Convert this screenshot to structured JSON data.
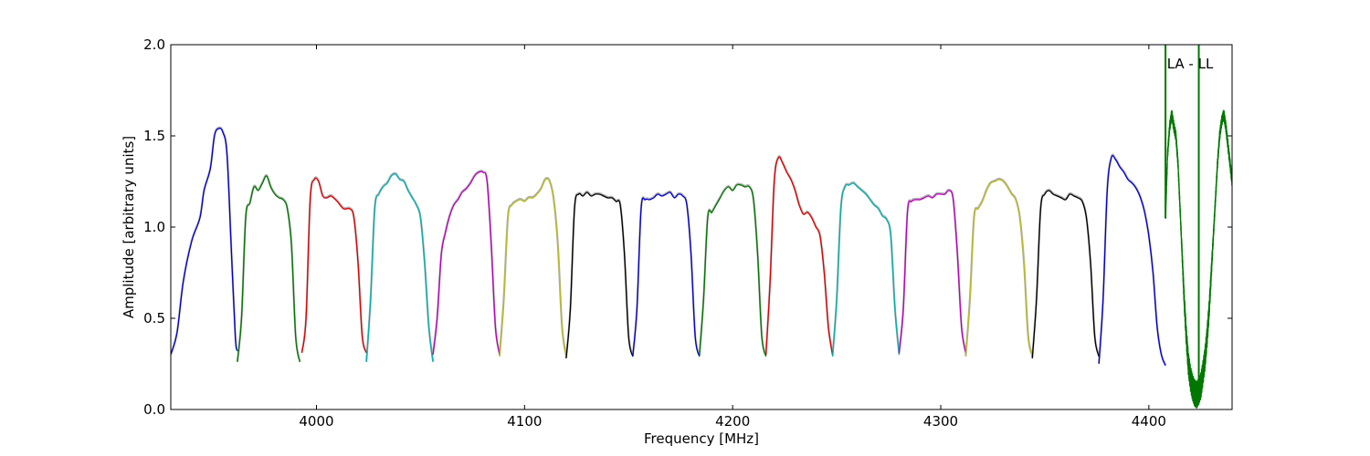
{
  "chart_data": {
    "type": "line",
    "title": "",
    "xlabel": "Frequency [MHz]",
    "ylabel": "Amplitude [arbitrary units]",
    "xlim": [
      3930,
      4440
    ],
    "ylim": [
      0.0,
      2.0
    ],
    "xticks": [
      4000,
      4100,
      4200,
      4300,
      4400
    ],
    "yticks": [
      0.0,
      0.5,
      1.0,
      1.5,
      2.0
    ],
    "xtick_labels": [
      "4000",
      "4100",
      "4200",
      "4300",
      "4400"
    ],
    "ytick_labels": [
      "0.0",
      "0.5",
      "1.0",
      "1.5",
      "2.0"
    ],
    "annotation": "LA - LL",
    "grid": false,
    "legend": "none",
    "reference_color": "#b0b0b0",
    "series": [
      {
        "color": "#0000cc",
        "x": [
          3930,
          3933,
          3936,
          3940,
          3944,
          3946,
          3949,
          3951,
          3953,
          3955,
          3957,
          3959,
          3961,
          3962
        ],
        "y": [
          0.3,
          0.42,
          0.7,
          0.92,
          1.05,
          1.2,
          1.32,
          1.5,
          1.54,
          1.52,
          1.4,
          0.9,
          0.4,
          0.32
        ]
      },
      {
        "color": "#007700",
        "x": [
          3962,
          3964,
          3966,
          3968,
          3970,
          3972,
          3974,
          3976,
          3978,
          3980,
          3982,
          3984,
          3986,
          3988,
          3990,
          3992
        ],
        "y": [
          0.26,
          0.5,
          1.05,
          1.13,
          1.22,
          1.2,
          1.24,
          1.28,
          1.22,
          1.18,
          1.16,
          1.15,
          1.1,
          0.9,
          0.4,
          0.26
        ]
      },
      {
        "color": "#dd0000",
        "x": [
          3993,
          3995,
          3997,
          3999,
          4001,
          4003,
          4005,
          4007,
          4010,
          4013,
          4016,
          4018,
          4020,
          4022,
          4024
        ],
        "y": [
          0.31,
          0.5,
          1.15,
          1.26,
          1.25,
          1.17,
          1.16,
          1.17,
          1.14,
          1.1,
          1.1,
          1.05,
          0.8,
          0.4,
          0.31
        ]
      },
      {
        "color": "#00b0b0",
        "x": [
          4024,
          4026,
          4028,
          4030,
          4032,
          4034,
          4036,
          4038,
          4040,
          4042,
          4044,
          4046,
          4048,
          4050,
          4052,
          4054,
          4056
        ],
        "y": [
          0.26,
          0.6,
          1.1,
          1.18,
          1.22,
          1.24,
          1.28,
          1.29,
          1.26,
          1.25,
          1.2,
          1.16,
          1.12,
          1.05,
          0.8,
          0.45,
          0.26
        ]
      },
      {
        "color": "#bb00bb",
        "x": [
          4056,
          4058,
          4060,
          4062,
          4064,
          4066,
          4068,
          4070,
          4072,
          4074,
          4076,
          4078,
          4080,
          4082,
          4084,
          4086,
          4088
        ],
        "y": [
          0.3,
          0.5,
          0.85,
          0.97,
          1.06,
          1.12,
          1.15,
          1.19,
          1.21,
          1.24,
          1.28,
          1.3,
          1.3,
          1.25,
          0.9,
          0.45,
          0.3
        ]
      },
      {
        "color": "#bbbb22",
        "x": [
          4088,
          4090,
          4092,
          4094,
          4096,
          4098,
          4100,
          4102,
          4104,
          4106,
          4108,
          4110,
          4112,
          4114,
          4116,
          4118,
          4120
        ],
        "y": [
          0.29,
          0.6,
          1.05,
          1.12,
          1.14,
          1.15,
          1.14,
          1.16,
          1.16,
          1.18,
          1.21,
          1.26,
          1.25,
          1.15,
          0.9,
          0.45,
          0.29
        ]
      },
      {
        "color": "#000000",
        "x": [
          4120,
          4122,
          4124,
          4126,
          4128,
          4130,
          4132,
          4134,
          4136,
          4138,
          4140,
          4142,
          4144,
          4146,
          4148,
          4150,
          4152
        ],
        "y": [
          0.28,
          0.55,
          1.1,
          1.18,
          1.17,
          1.19,
          1.17,
          1.18,
          1.18,
          1.17,
          1.16,
          1.16,
          1.14,
          1.12,
          0.85,
          0.4,
          0.29
        ]
      },
      {
        "color": "#0000cc",
        "x": [
          4152,
          4154,
          4156,
          4158,
          4160,
          4162,
          4164,
          4166,
          4168,
          4170,
          4172,
          4174,
          4176,
          4178,
          4180,
          4182,
          4184
        ],
        "y": [
          0.29,
          0.55,
          1.1,
          1.15,
          1.15,
          1.16,
          1.18,
          1.17,
          1.18,
          1.19,
          1.16,
          1.18,
          1.17,
          1.12,
          0.85,
          0.4,
          0.29
        ]
      },
      {
        "color": "#007700",
        "x": [
          4184,
          4186,
          4188,
          4190,
          4192,
          4194,
          4196,
          4198,
          4200,
          4202,
          4204,
          4206,
          4208,
          4210,
          4212,
          4214,
          4216
        ],
        "y": [
          0.29,
          0.6,
          1.05,
          1.08,
          1.12,
          1.16,
          1.2,
          1.22,
          1.2,
          1.23,
          1.23,
          1.22,
          1.22,
          1.15,
          0.85,
          0.4,
          0.29
        ]
      },
      {
        "color": "#dd0000",
        "x": [
          4216,
          4218,
          4220,
          4222,
          4224,
          4226,
          4228,
          4230,
          4232,
          4234,
          4236,
          4238,
          4240,
          4242,
          4244,
          4246,
          4248
        ],
        "y": [
          0.3,
          0.7,
          1.25,
          1.38,
          1.35,
          1.3,
          1.26,
          1.2,
          1.12,
          1.07,
          1.08,
          1.05,
          1.0,
          0.95,
          0.75,
          0.45,
          0.3
        ]
      },
      {
        "color": "#00b0b0",
        "x": [
          4248,
          4250,
          4252,
          4254,
          4256,
          4258,
          4260,
          4262,
          4264,
          4266,
          4268,
          4270,
          4272,
          4274,
          4276,
          4278,
          4280
        ],
        "y": [
          0.29,
          0.6,
          1.1,
          1.22,
          1.23,
          1.24,
          1.22,
          1.2,
          1.18,
          1.15,
          1.12,
          1.1,
          1.06,
          1.04,
          0.95,
          0.55,
          0.3
        ]
      },
      {
        "color": "#bb00bb",
        "x": [
          4280,
          4282,
          4284,
          4286,
          4288,
          4290,
          4292,
          4294,
          4296,
          4298,
          4300,
          4302,
          4304,
          4306,
          4308,
          4310,
          4312
        ],
        "y": [
          0.31,
          0.55,
          1.08,
          1.14,
          1.15,
          1.15,
          1.16,
          1.17,
          1.16,
          1.18,
          1.18,
          1.18,
          1.2,
          1.15,
          0.85,
          0.45,
          0.31
        ]
      },
      {
        "color": "#bbbb22",
        "x": [
          4312,
          4314,
          4316,
          4318,
          4320,
          4322,
          4324,
          4326,
          4328,
          4330,
          4332,
          4334,
          4336,
          4338,
          4340,
          4342,
          4344
        ],
        "y": [
          0.29,
          0.6,
          1.05,
          1.1,
          1.14,
          1.2,
          1.24,
          1.25,
          1.26,
          1.25,
          1.22,
          1.18,
          1.15,
          1.05,
          0.8,
          0.4,
          0.29
        ]
      },
      {
        "color": "#000000",
        "x": [
          4344,
          4346,
          4348,
          4350,
          4352,
          4354,
          4356,
          4358,
          4360,
          4362,
          4364,
          4366,
          4368,
          4370,
          4372,
          4374,
          4376
        ],
        "y": [
          0.28,
          0.6,
          1.1,
          1.18,
          1.2,
          1.18,
          1.17,
          1.16,
          1.15,
          1.18,
          1.17,
          1.16,
          1.14,
          1.05,
          0.8,
          0.4,
          0.29
        ]
      },
      {
        "color": "#0000cc",
        "x": [
          4376,
          4378,
          4380,
          4382,
          4384,
          4386,
          4388,
          4390,
          4392,
          4394,
          4396,
          4398,
          4400,
          4402,
          4404,
          4406,
          4408
        ],
        "y": [
          0.25,
          0.6,
          1.2,
          1.38,
          1.37,
          1.33,
          1.3,
          1.26,
          1.24,
          1.21,
          1.16,
          1.08,
          0.95,
          0.75,
          0.45,
          0.3,
          0.24
        ]
      }
    ],
    "oscillating_series": {
      "color": "#007700",
      "x": [
        4408,
        4409,
        4410,
        4411,
        4412,
        4413,
        4414,
        4415,
        4416,
        4417,
        4418,
        4419,
        4420,
        4421,
        4422,
        4423,
        4424,
        4425,
        4426,
        4427,
        4428,
        4429,
        4430,
        4431,
        4432,
        4433,
        4434,
        4435,
        4436,
        4437,
        4438,
        4439,
        4440
      ],
      "y": [
        1.05,
        1.4,
        1.55,
        1.62,
        1.55,
        1.5,
        1.35,
        1.1,
        0.85,
        0.6,
        0.4,
        0.25,
        0.17,
        0.12,
        0.09,
        0.08,
        0.1,
        0.13,
        0.2,
        0.28,
        0.4,
        0.55,
        0.75,
        0.95,
        1.15,
        1.35,
        1.5,
        1.58,
        1.62,
        1.55,
        1.45,
        1.35,
        1.25
      ],
      "spikes_x": [
        4408,
        4424
      ]
    }
  }
}
